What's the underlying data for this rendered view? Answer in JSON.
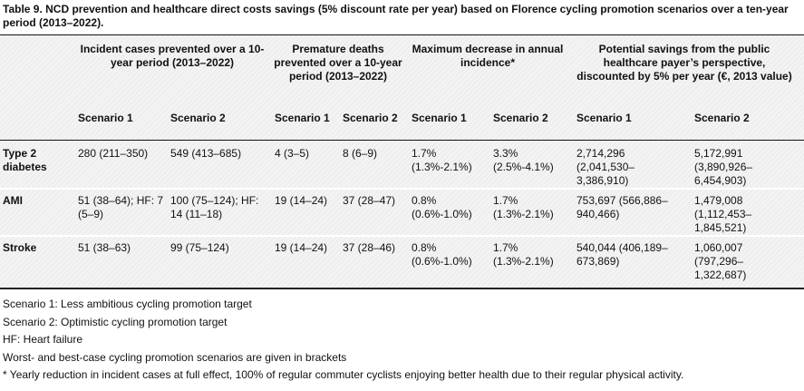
{
  "caption": "Table 9.  NCD prevention and healthcare direct costs savings (5% discount rate per year) based on Florence cycling promotion scenarios over a ten-year period (2013–2022).",
  "headers": {
    "incident": "Incident cases prevented over a 10-year period (2013–2022)",
    "deaths": "Premature deaths prevented over a 10-year period (2013–2022)",
    "decrease": "Maximum decrease in annual incidence*",
    "savings": "Potential savings from the public healthcare payer’s perspective, discounted by 5% per year (€, 2013 value)"
  },
  "subheaders": {
    "incident_s1": "Scenario 1",
    "incident_s2": "Scenario 2",
    "deaths_s1": "Scenario 1",
    "deaths_s2": "Scenario 2",
    "decrease_s1": "Scenario 1",
    "decrease_s2": "Scenario 2",
    "savings_s1": "Scenario 1",
    "savings_s2": "Scenario 2"
  },
  "rows": [
    {
      "label": "Type 2 diabetes",
      "cells": [
        "280 (211–350)",
        "549 (413–685)",
        "4 (3–5)",
        "8 (6–9)",
        "1.7% (1.3%-2.1%)",
        "3.3% (2.5%-4.1%)",
        "2,714,296 (2,041,530–3,386,910)",
        "5,172,991 (3,890,926–6,454,903)"
      ]
    },
    {
      "label": "AMI",
      "cells": [
        "51 (38–64); HF: 7 (5–9)",
        "100 (75–124); HF: 14 (11–18)",
        "19 (14–24)",
        "37 (28–47)",
        "0.8% (0.6%-1.0%)",
        "1.7% (1.3%-2.1%)",
        "753,697 (566,886–940,466)",
        "1,479,008 (1,112,453–1,845,521)"
      ]
    },
    {
      "label": "Stroke",
      "cells": [
        "51 (38–63)",
        "99 (75–124)",
        "19 (14–24)",
        "37 (28–46)",
        "0.8% (0.6%-1.0%)",
        "1.7% (1.3%-2.1%)",
        "540,044 (406,189–673,869)",
        "1,060,007 (797,296–1,322,687)"
      ]
    }
  ],
  "footnotes": [
    "Scenario 1: Less ambitious cycling promotion target",
    "Scenario 2: Optimistic cycling promotion target",
    "HF: Heart failure",
    "Worst- and best-case cycling promotion scenarios are given in brackets",
    "* Yearly reduction in incident cases at full effect, 100% of regular commuter cyclists enjoying better health due to their regular physical activity."
  ]
}
